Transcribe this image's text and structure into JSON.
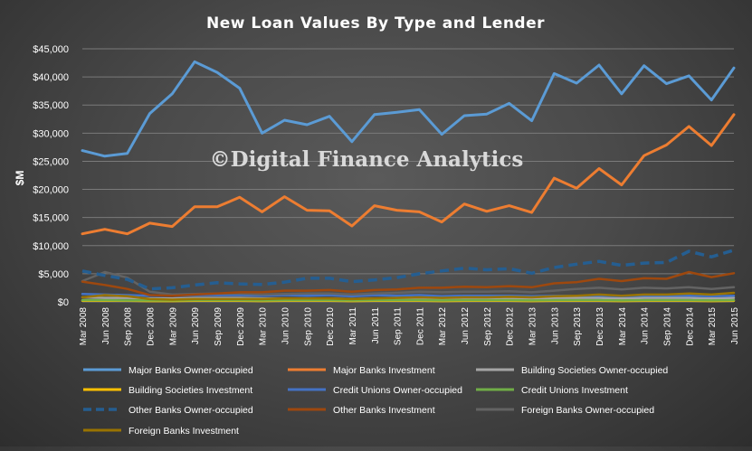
{
  "chart_data": {
    "type": "line",
    "title": "New Loan Values By Type and Lender",
    "ylabel": "$M",
    "xlabel": "",
    "watermark": "©Digital Finance Analytics",
    "ylim": [
      0,
      45000
    ],
    "yticks": [
      0,
      5000,
      10000,
      15000,
      20000,
      25000,
      30000,
      35000,
      40000,
      45000
    ],
    "ytick_labels": [
      "$0",
      "$5,000",
      "$10,000",
      "$15,000",
      "$20,000",
      "$25,000",
      "$30,000",
      "$35,000",
      "$40,000",
      "$45,000"
    ],
    "grid": true,
    "legend_position": "bottom",
    "categories": [
      "Mar 2008",
      "Jun 2008",
      "Sep 2008",
      "Dec 2008",
      "Mar 2009",
      "Jun 2009",
      "Sep 2009",
      "Dec 2009",
      "Mar 2010",
      "Jun 2010",
      "Sep 2010",
      "Dec 2010",
      "Mar 2011",
      "Jun 2011",
      "Sep 2011",
      "Dec 2011",
      "Mar 2012",
      "Jun 2012",
      "Sep 2012",
      "Dec 2012",
      "Mar 2013",
      "Jun 2013",
      "Sep 2013",
      "Dec 2013",
      "Mar 2014",
      "Jun 2014",
      "Sep 2014",
      "Dec 2014",
      "Mar 2015",
      "Jun 2015"
    ],
    "series": [
      {
        "name": "Major Banks Owner-occupied",
        "color": "#5b9bd5",
        "dash": false,
        "width": 3,
        "values": [
          26900,
          25900,
          26400,
          33500,
          37000,
          42700,
          40800,
          38000,
          30000,
          32300,
          31500,
          33000,
          28500,
          33300,
          33700,
          34200,
          29800,
          33100,
          33400,
          35300,
          32200,
          40600,
          38900,
          42100,
          37000,
          42000,
          38800,
          40200,
          35900,
          41600
        ]
      },
      {
        "name": "Major Banks Investment",
        "color": "#ed7d31",
        "dash": false,
        "width": 3,
        "values": [
          12100,
          12900,
          12100,
          14000,
          13400,
          16900,
          16900,
          18600,
          16000,
          18700,
          16300,
          16200,
          13500,
          17100,
          16300,
          16000,
          14200,
          17400,
          16100,
          17100,
          15900,
          22000,
          20200,
          23700,
          20800,
          26000,
          27900,
          31200,
          27800,
          33300
        ]
      },
      {
        "name": "Building Societies Owner-occupied",
        "color": "#a5a5a5",
        "dash": false,
        "width": 2.5,
        "values": [
          800,
          700,
          700,
          600,
          600,
          700,
          700,
          700,
          600,
          600,
          600,
          600,
          500,
          600,
          600,
          600,
          500,
          600,
          600,
          600,
          600,
          700,
          700,
          700,
          600,
          700,
          700,
          700,
          600,
          700
        ]
      },
      {
        "name": "Building Societies Investment",
        "color": "#ffc000",
        "dash": false,
        "width": 2.5,
        "values": [
          200,
          200,
          200,
          150,
          150,
          200,
          200,
          200,
          150,
          200,
          200,
          200,
          150,
          200,
          200,
          200,
          150,
          200,
          200,
          200,
          150,
          200,
          200,
          200,
          150,
          200,
          200,
          200,
          150,
          200
        ]
      },
      {
        "name": "Credit Unions Owner-occupied",
        "color": "#4472c4",
        "dash": false,
        "width": 2.5,
        "values": [
          1400,
          1300,
          1200,
          1100,
          1100,
          1200,
          1200,
          1200,
          1100,
          1200,
          1100,
          1200,
          1000,
          1200,
          1100,
          1200,
          1000,
          1100,
          1100,
          1100,
          1000,
          1100,
          1100,
          1100,
          1000,
          1100,
          1100,
          1100,
          1000,
          1100
        ]
      },
      {
        "name": "Credit Unions Investment",
        "color": "#70ad47",
        "dash": false,
        "width": 2.5,
        "values": [
          300,
          300,
          250,
          250,
          250,
          300,
          300,
          300,
          250,
          300,
          300,
          300,
          250,
          300,
          300,
          300,
          250,
          300,
          300,
          300,
          250,
          300,
          300,
          300,
          250,
          300,
          300,
          300,
          250,
          300
        ]
      },
      {
        "name": "Other Banks Owner-occupied",
        "color": "#255e91",
        "dash": true,
        "width": 3.5,
        "values": [
          5500,
          4700,
          4000,
          2300,
          2500,
          3000,
          3400,
          3200,
          3100,
          3500,
          4200,
          4200,
          3600,
          3900,
          4300,
          5000,
          5500,
          6000,
          5700,
          5900,
          5100,
          6100,
          6700,
          7200,
          6500,
          6900,
          7000,
          9000,
          8000,
          9200
        ]
      },
      {
        "name": "Other Banks Investment",
        "color": "#9e480e",
        "dash": false,
        "width": 2.5,
        "values": [
          3600,
          3000,
          2300,
          1200,
          1100,
          1300,
          1500,
          1700,
          1700,
          2000,
          2000,
          2100,
          1800,
          2100,
          2200,
          2500,
          2500,
          2700,
          2600,
          2800,
          2600,
          3300,
          3500,
          4100,
          3700,
          4200,
          4100,
          5300,
          4400,
          5100
        ]
      },
      {
        "name": "Foreign Banks Owner-occupied",
        "color": "#636363",
        "dash": false,
        "width": 2.5,
        "values": [
          3700,
          5300,
          4300,
          1800,
          1300,
          1400,
          1500,
          1500,
          1300,
          1400,
          1500,
          1500,
          1300,
          1500,
          1600,
          1800,
          1700,
          1800,
          1800,
          1900,
          1700,
          2000,
          2300,
          2500,
          2200,
          2500,
          2400,
          2600,
          2300,
          2600
        ]
      },
      {
        "name": "Foreign Banks Investment",
        "color": "#997300",
        "dash": false,
        "width": 2.5,
        "values": [
          800,
          1200,
          1000,
          500,
          400,
          500,
          500,
          500,
          500,
          600,
          600,
          600,
          500,
          600,
          700,
          800,
          700,
          800,
          800,
          900,
          800,
          1000,
          1100,
          1300,
          1100,
          1300,
          1300,
          1500,
          1300,
          1600
        ]
      }
    ]
  }
}
